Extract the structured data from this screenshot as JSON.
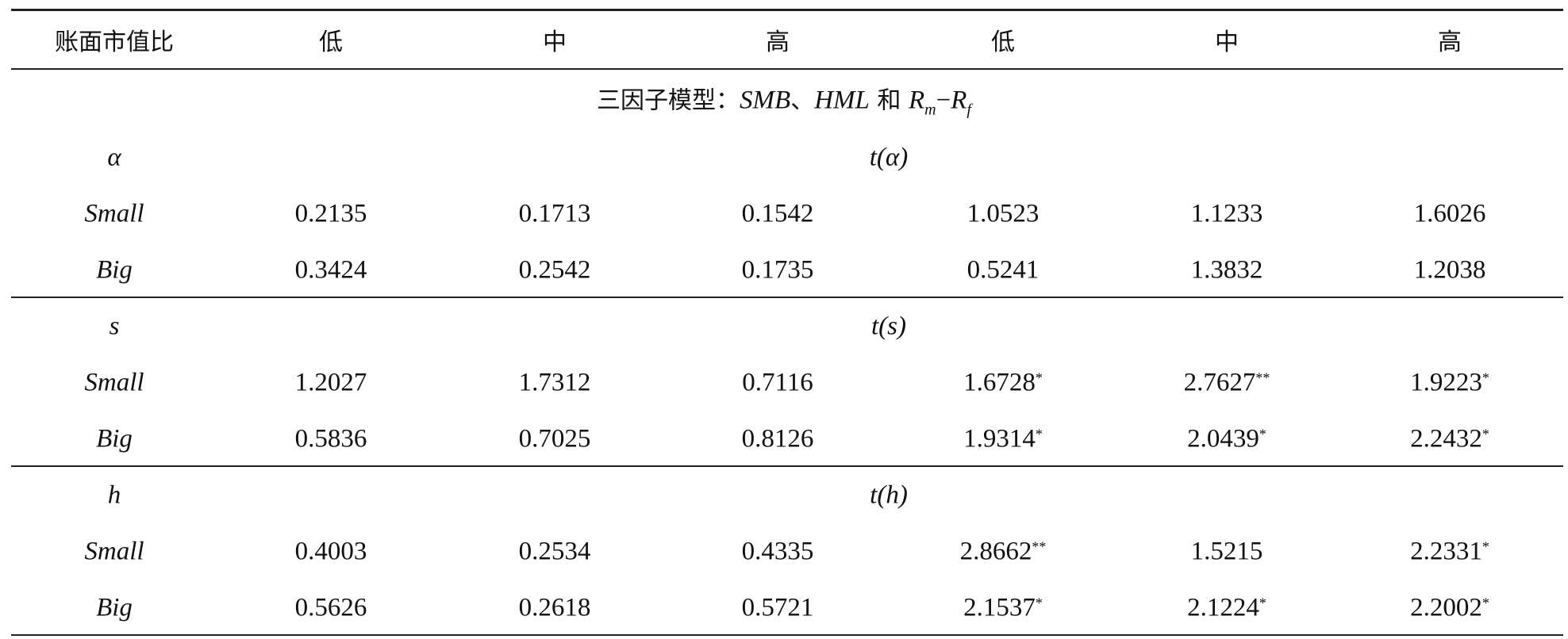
{
  "header": [
    "账面市值比",
    "低",
    "中",
    "高",
    "低",
    "中",
    "高"
  ],
  "section_title": [
    "三因子模型：",
    "SMB",
    "、",
    "HML",
    " 和 ",
    "R",
    "m",
    "−",
    "R",
    "f"
  ],
  "blocks": [
    {
      "label": "α",
      "t_label": [
        "t",
        "(α)"
      ],
      "rows": [
        {
          "label": "Small",
          "cells": [
            {
              "value": 0.2135
            },
            {
              "value": 0.1713
            },
            {
              "value": 0.1542
            },
            {
              "value": 1.0523
            },
            {
              "value": 1.1233
            },
            {
              "value": 1.6026
            }
          ]
        },
        {
          "label": "Big",
          "cells": [
            {
              "value": 0.3424
            },
            {
              "value": 0.2542
            },
            {
              "value": 0.1735
            },
            {
              "value": 0.5241
            },
            {
              "value": 1.3832
            },
            {
              "value": 1.2038
            }
          ]
        }
      ]
    },
    {
      "label": "s",
      "t_label": [
        "t",
        "(s)"
      ],
      "rows": [
        {
          "label": "Small",
          "cells": [
            {
              "value": 1.2027
            },
            {
              "value": 1.7312
            },
            {
              "value": 0.7116
            },
            {
              "value": 1.6728,
              "sig": "*"
            },
            {
              "value": 2.7627,
              "sig": "**"
            },
            {
              "value": 1.9223,
              "sig": "*"
            }
          ]
        },
        {
          "label": "Big",
          "cells": [
            {
              "value": 0.5836
            },
            {
              "value": 0.7025
            },
            {
              "value": 0.8126
            },
            {
              "value": 1.9314,
              "sig": "*"
            },
            {
              "value": 2.0439,
              "sig": "*"
            },
            {
              "value": 2.2432,
              "sig": "*"
            }
          ]
        }
      ]
    },
    {
      "label": "h",
      "t_label": [
        "t",
        "(h)"
      ],
      "rows": [
        {
          "label": "Small",
          "cells": [
            {
              "value": 0.4003
            },
            {
              "value": 0.2534
            },
            {
              "value": 0.4335
            },
            {
              "value": 2.8662,
              "sig": "**"
            },
            {
              "value": 1.5215
            },
            {
              "value": 2.2331,
              "sig": "*"
            }
          ]
        },
        {
          "label": "Big",
          "cells": [
            {
              "value": 0.5626
            },
            {
              "value": 0.2618
            },
            {
              "value": 0.5721
            },
            {
              "value": 2.1537,
              "sig": "*"
            },
            {
              "value": 2.1224,
              "sig": "*"
            },
            {
              "value": 2.2002,
              "sig": "*"
            }
          ]
        }
      ]
    }
  ]
}
